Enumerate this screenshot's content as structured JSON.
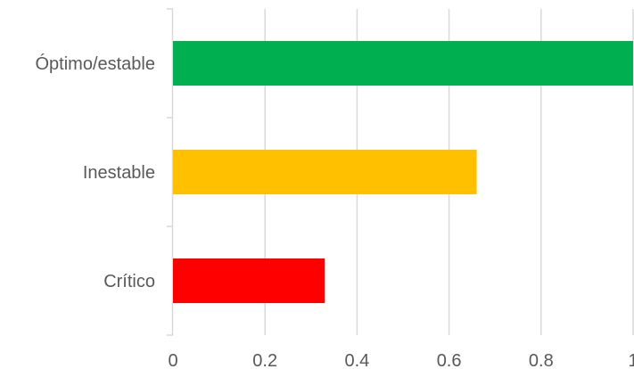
{
  "chart_data": {
    "type": "bar",
    "orientation": "horizontal",
    "categories": [
      "Óptimo/estable",
      "Inestable",
      "Crítico"
    ],
    "values": [
      1.0,
      0.66,
      0.33
    ],
    "colors": [
      "#00B050",
      "#FFC000",
      "#FF0000"
    ],
    "x_ticks": [
      "0",
      "0.2",
      "0.4",
      "0.6",
      "0.8",
      "1"
    ],
    "xlim": [
      0,
      1
    ],
    "grid": true,
    "title": "",
    "xlabel": "",
    "ylabel": ""
  }
}
